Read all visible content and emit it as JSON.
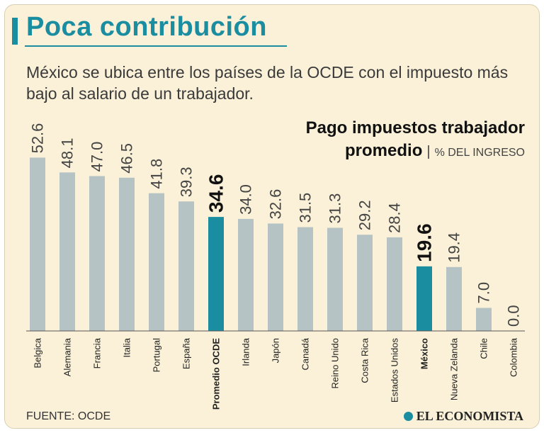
{
  "header": {
    "title": "Poca contribución",
    "subtitle": "México se ubica entre los países de la OCDE con el impuesto más bajo al salario de un trabajador."
  },
  "legend": {
    "line1": "Pago impuestos trabajador",
    "line2": "promedio",
    "separator": "|",
    "unit": "% DEL INGRESO"
  },
  "footer": {
    "source": "FUENTE:  OCDE",
    "brand": "EL ECONOMISTA"
  },
  "colors": {
    "bar_default": "#b6c3c4",
    "bar_highlight": "#1a8da0",
    "accent": "#1a8da0",
    "background": "#faf1d8",
    "text": "#3a3a3a"
  },
  "chart_data": {
    "type": "bar",
    "title": "Pago impuestos trabajador promedio",
    "ylabel": "% DEL INGRESO",
    "xlabel": "",
    "ylim": [
      0,
      60
    ],
    "categories": [
      "Belgica",
      "Alemania",
      "Francia",
      "Italia",
      "Portugal",
      "España",
      "Promedio OCDE",
      "Irlanda",
      "Japón",
      "Canadá",
      "Reino Unido",
      "Costa Rica",
      "Estados Unidos",
      "México",
      "Nueva Zelanda",
      "Chile",
      "Colombia"
    ],
    "values": [
      52.6,
      48.1,
      47.0,
      46.5,
      41.8,
      39.3,
      34.6,
      34.0,
      32.6,
      31.5,
      31.3,
      29.2,
      28.4,
      19.6,
      19.4,
      7.0,
      0.0
    ],
    "labels": [
      "52.6",
      "48.1",
      "47.0",
      "46.5",
      "41.8",
      "39.3",
      "34.6",
      "34.0",
      "32.6",
      "31.5",
      "31.3",
      "29.2",
      "28.4",
      "19.6",
      "19.4",
      "7.0",
      "0.0"
    ],
    "highlighted": [
      "Promedio OCDE",
      "México"
    ]
  }
}
